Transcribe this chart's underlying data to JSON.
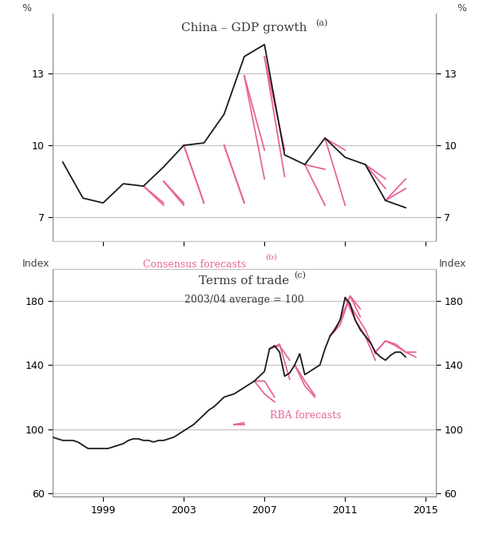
{
  "gdp_black_x": [
    1997,
    1998,
    1999,
    2000,
    2001,
    2002,
    2003,
    2004,
    2005,
    2006,
    2007,
    2008,
    2009,
    2010,
    2011,
    2012,
    2013,
    2014
  ],
  "gdp_black_y": [
    9.3,
    7.8,
    7.6,
    8.4,
    8.3,
    9.1,
    10.0,
    10.1,
    11.3,
    13.7,
    14.2,
    9.6,
    9.2,
    10.3,
    9.5,
    9.2,
    7.7,
    7.4
  ],
  "gdp_forecasts": [
    {
      "x": [
        2001,
        2002
      ],
      "y": [
        8.3,
        7.6
      ]
    },
    {
      "x": [
        2001,
        2002
      ],
      "y": [
        8.3,
        7.5
      ]
    },
    {
      "x": [
        2002,
        2003
      ],
      "y": [
        8.5,
        7.5
      ]
    },
    {
      "x": [
        2002,
        2003
      ],
      "y": [
        8.5,
        7.6
      ]
    },
    {
      "x": [
        2003,
        2004
      ],
      "y": [
        10.0,
        7.6
      ]
    },
    {
      "x": [
        2003,
        2004
      ],
      "y": [
        10.0,
        7.6
      ]
    },
    {
      "x": [
        2005,
        2006
      ],
      "y": [
        10.0,
        7.6
      ]
    },
    {
      "x": [
        2005,
        2006
      ],
      "y": [
        10.0,
        7.6
      ]
    },
    {
      "x": [
        2006,
        2007
      ],
      "y": [
        12.9,
        8.6
      ]
    },
    {
      "x": [
        2006,
        2007
      ],
      "y": [
        12.9,
        9.8
      ]
    },
    {
      "x": [
        2007,
        2008
      ],
      "y": [
        13.7,
        8.7
      ]
    },
    {
      "x": [
        2007,
        2008
      ],
      "y": [
        13.7,
        9.8
      ]
    },
    {
      "x": [
        2009,
        2010
      ],
      "y": [
        9.2,
        9.0
      ]
    },
    {
      "x": [
        2009,
        2010
      ],
      "y": [
        9.2,
        7.5
      ]
    },
    {
      "x": [
        2010,
        2011
      ],
      "y": [
        10.3,
        9.8
      ]
    },
    {
      "x": [
        2010,
        2011
      ],
      "y": [
        10.3,
        7.5
      ]
    },
    {
      "x": [
        2012,
        2013
      ],
      "y": [
        9.2,
        8.6
      ]
    },
    {
      "x": [
        2012,
        2013
      ],
      "y": [
        9.2,
        8.2
      ]
    },
    {
      "x": [
        2013,
        2014
      ],
      "y": [
        7.7,
        8.6
      ]
    },
    {
      "x": [
        2013,
        2014
      ],
      "y": [
        7.7,
        8.2
      ]
    }
  ],
  "tot_black_x": [
    1996.0,
    1996.25,
    1996.5,
    1996.75,
    1997.0,
    1997.25,
    1997.5,
    1997.75,
    1998.0,
    1998.25,
    1998.5,
    1998.75,
    1999.0,
    1999.25,
    1999.5,
    1999.75,
    2000.0,
    2000.25,
    2000.5,
    2000.75,
    2001.0,
    2001.25,
    2001.5,
    2001.75,
    2002.0,
    2002.25,
    2002.5,
    2002.75,
    2003.0,
    2003.25,
    2003.5,
    2003.75,
    2004.0,
    2004.25,
    2004.5,
    2004.75,
    2005.0,
    2005.25,
    2005.5,
    2005.75,
    2006.0,
    2006.25,
    2006.5,
    2006.75,
    2007.0,
    2007.25,
    2007.5,
    2007.75,
    2008.0,
    2008.25,
    2008.5,
    2008.75,
    2009.0,
    2009.25,
    2009.5,
    2009.75,
    2010.0,
    2010.25,
    2010.5,
    2010.75,
    2011.0,
    2011.25,
    2011.5,
    2011.75,
    2012.0,
    2012.25,
    2012.5,
    2012.75,
    2013.0,
    2013.25,
    2013.5,
    2013.75,
    2014.0
  ],
  "tot_black_y": [
    95,
    95,
    95,
    94,
    93,
    93,
    93,
    92,
    90,
    88,
    88,
    88,
    88,
    88,
    89,
    90,
    91,
    93,
    94,
    94,
    93,
    93,
    92,
    93,
    93,
    94,
    95,
    97,
    99,
    101,
    103,
    106,
    109,
    112,
    114,
    117,
    120,
    121,
    122,
    124,
    126,
    128,
    130,
    133,
    136,
    150,
    152,
    148,
    133,
    135,
    140,
    147,
    134,
    136,
    138,
    140,
    150,
    158,
    162,
    168,
    182,
    178,
    168,
    162,
    158,
    154,
    148,
    145,
    143,
    146,
    148,
    148,
    145
  ],
  "tot_forecasts": [
    {
      "x": [
        2005.5,
        2006.0
      ],
      "y": [
        103,
        103
      ]
    },
    {
      "x": [
        2005.5,
        2006.0
      ],
      "y": [
        103,
        104
      ]
    },
    {
      "x": [
        2006.5,
        2007.0,
        2007.5
      ],
      "y": [
        130,
        122,
        117
      ]
    },
    {
      "x": [
        2006.5,
        2007.0,
        2007.5
      ],
      "y": [
        130,
        130,
        120
      ]
    },
    {
      "x": [
        2007.25,
        2007.75,
        2008.25
      ],
      "y": [
        150,
        153,
        131
      ]
    },
    {
      "x": [
        2007.25,
        2007.75,
        2008.25
      ],
      "y": [
        150,
        152,
        143
      ]
    },
    {
      "x": [
        2008.5,
        2009.0,
        2009.5
      ],
      "y": [
        140,
        127,
        120
      ]
    },
    {
      "x": [
        2008.5,
        2009.0,
        2009.5
      ],
      "y": [
        140,
        130,
        121
      ]
    },
    {
      "x": [
        2010.25,
        2010.75,
        2011.25,
        2011.75
      ],
      "y": [
        158,
        168,
        183,
        170
      ]
    },
    {
      "x": [
        2010.25,
        2010.75,
        2011.25,
        2011.75
      ],
      "y": [
        158,
        165,
        183,
        175
      ]
    },
    {
      "x": [
        2011.0,
        2011.5,
        2012.0,
        2012.5
      ],
      "y": [
        182,
        168,
        158,
        143
      ]
    },
    {
      "x": [
        2011.0,
        2011.5,
        2012.0,
        2012.5
      ],
      "y": [
        182,
        172,
        162,
        147
      ]
    },
    {
      "x": [
        2012.5,
        2013.0,
        2013.5,
        2014.0,
        2014.5
      ],
      "y": [
        148,
        155,
        153,
        148,
        145
      ]
    },
    {
      "x": [
        2012.5,
        2013.0,
        2013.5,
        2014.0,
        2014.5
      ],
      "y": [
        148,
        155,
        152,
        148,
        148
      ]
    }
  ],
  "gdp_ylim": [
    6.0,
    15.5
  ],
  "gdp_yticks": [
    7,
    10,
    13
  ],
  "tot_ylim": [
    58,
    200
  ],
  "tot_yticks": [
    60,
    100,
    140,
    180
  ],
  "xlim": [
    1996.5,
    2015.5
  ],
  "xticks": [
    1999,
    2003,
    2007,
    2011,
    2015
  ],
  "black_color": "#1a1a1a",
  "pink_color": "#e8649a",
  "bg_color": "#ffffff",
  "grid_color": "#c0c0c0",
  "gdp_title_main": "China – GDP growth",
  "gdp_title_super": "(a)",
  "tot_title_main": "Terms of trade",
  "tot_title_super": "(c)",
  "tot_subtitle": "2003/04 average = 100",
  "gdp_label": "Consensus forecasts",
  "gdp_label_super": "(b)",
  "tot_label": "RBA forecasts",
  "ylabel_top_left": "%",
  "ylabel_top_right": "%",
  "ylabel_bot_left": "Index",
  "ylabel_bot_right": "Index"
}
